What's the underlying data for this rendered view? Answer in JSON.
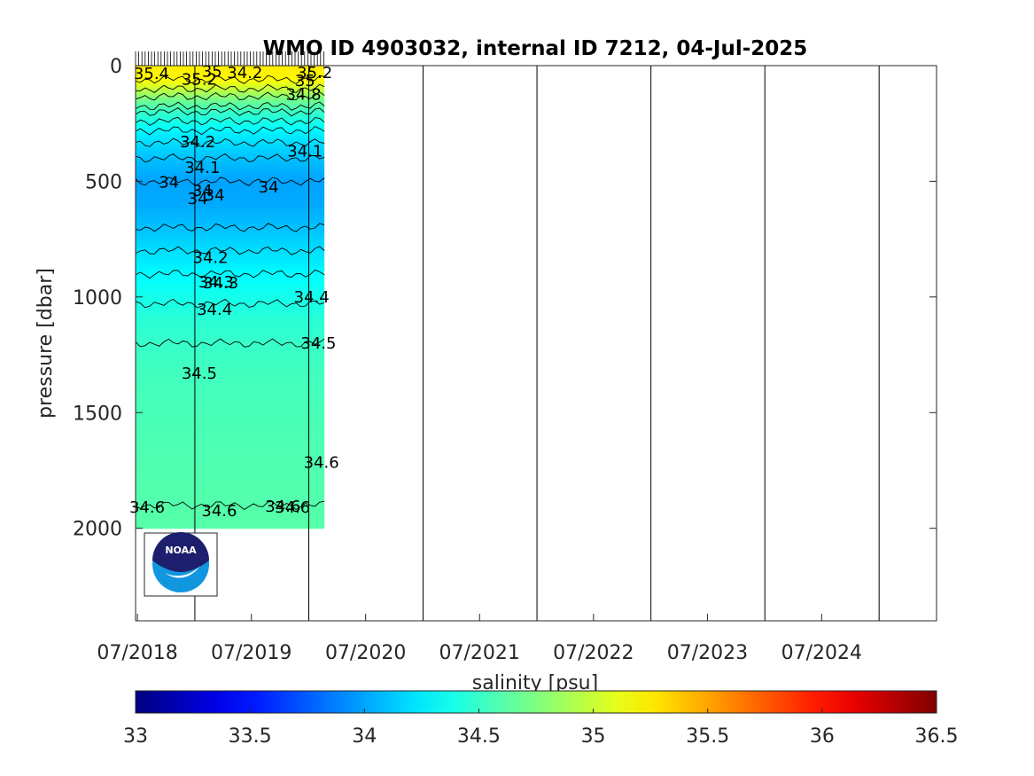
{
  "chart_data": {
    "type": "heatmap",
    "title": "WMO ID 4903032, internal ID 7212, 04-Jul-2025",
    "ylabel": "pressure [dbar]",
    "colorbar_label": "salinity [psu]",
    "y_reversed": true,
    "ylim": [
      0,
      2400
    ],
    "xlim": [
      "2018-06-25",
      "2025-07-04"
    ],
    "y_ticks": [
      0,
      500,
      1000,
      1500,
      2000
    ],
    "y_tick_labels": [
      "0",
      "500",
      "1000",
      "1500",
      "2000"
    ],
    "x_ticks": [
      "2018-07-01",
      "2019-07-01",
      "2020-07-01",
      "2021-07-01",
      "2022-07-01",
      "2023-07-01",
      "2024-07-01"
    ],
    "x_tick_labels": [
      "07/2018",
      "07/2019",
      "07/2020",
      "07/2021",
      "07/2022",
      "07/2023",
      "07/2024"
    ],
    "year_boundaries": [
      "2019-01-01",
      "2020-01-01",
      "2021-01-01",
      "2022-01-01",
      "2023-01-01",
      "2024-01-01",
      "2025-01-01"
    ],
    "data_extent": {
      "start": "2018-06-25",
      "end": "2020-02-20"
    },
    "colorbar": {
      "colormap": "jet",
      "range": [
        33,
        36.5
      ],
      "ticks": [
        "33",
        "33.5",
        "34",
        "34.5",
        "35",
        "35.5",
        "36",
        "36.5"
      ]
    },
    "salinity_profile": {
      "pressure": [
        0,
        60,
        100,
        150,
        200,
        300,
        400,
        500,
        600,
        700,
        800,
        900,
        1000,
        1100,
        1200,
        1300,
        1500,
        1800,
        2000
      ],
      "salinity": [
        35.25,
        35.2,
        35.0,
        34.7,
        34.5,
        34.25,
        34.1,
        34.0,
        34.02,
        34.1,
        34.2,
        34.3,
        34.38,
        34.45,
        34.5,
        34.53,
        34.56,
        34.59,
        34.61
      ]
    },
    "contour_labels": [
      {
        "text": "35.4",
        "date": "2018-08-15",
        "pressure": 35
      },
      {
        "text": "35.2",
        "date": "2019-01-15",
        "pressure": 60
      },
      {
        "text": "35",
        "date": "2019-02-25",
        "pressure": 25
      },
      {
        "text": "34.2",
        "date": "2019-06-10",
        "pressure": 30
      },
      {
        "text": "35.2",
        "date": "2020-01-20",
        "pressure": 30
      },
      {
        "text": "35",
        "date": "2019-12-20",
        "pressure": 65
      },
      {
        "text": "34.8",
        "date": "2019-12-15",
        "pressure": 125
      },
      {
        "text": "34.2",
        "date": "2019-01-10",
        "pressure": 330
      },
      {
        "text": "34.1",
        "date": "2019-12-20",
        "pressure": 370
      },
      {
        "text": "34.1",
        "date": "2019-01-25",
        "pressure": 440
      },
      {
        "text": "34",
        "date": "2018-10-10",
        "pressure": 505
      },
      {
        "text": "34",
        "date": "2019-01-25",
        "pressure": 540
      },
      {
        "text": "34",
        "date": "2019-01-10",
        "pressure": 575
      },
      {
        "text": "34",
        "date": "2019-03-05",
        "pressure": 560
      },
      {
        "text": "34",
        "date": "2019-08-25",
        "pressure": 525
      },
      {
        "text": "34.2",
        "date": "2019-02-20",
        "pressure": 830
      },
      {
        "text": "34.3",
        "date": "2019-03-10",
        "pressure": 935
      },
      {
        "text": "34.3",
        "date": "2019-03-25",
        "pressure": 940
      },
      {
        "text": "34.4",
        "date": "2020-01-10",
        "pressure": 1000
      },
      {
        "text": "34.4",
        "date": "2019-03-05",
        "pressure": 1055
      },
      {
        "text": "34.5",
        "date": "2020-02-01",
        "pressure": 1200
      },
      {
        "text": "34.5",
        "date": "2019-01-15",
        "pressure": 1330
      },
      {
        "text": "34.6",
        "date": "2020-02-10",
        "pressure": 1715
      },
      {
        "text": "34.6",
        "date": "2019-10-10",
        "pressure": 1905
      },
      {
        "text": "34.6",
        "date": "2019-11-10",
        "pressure": 1910
      },
      {
        "text": "34.6",
        "date": "2018-08-01",
        "pressure": 1910
      },
      {
        "text": "34.6",
        "date": "2019-03-20",
        "pressure": 1925
      }
    ]
  },
  "logo": {
    "text": "NOAA",
    "colors": {
      "dark": "#1d1f6e",
      "light": "#1196e0"
    }
  }
}
